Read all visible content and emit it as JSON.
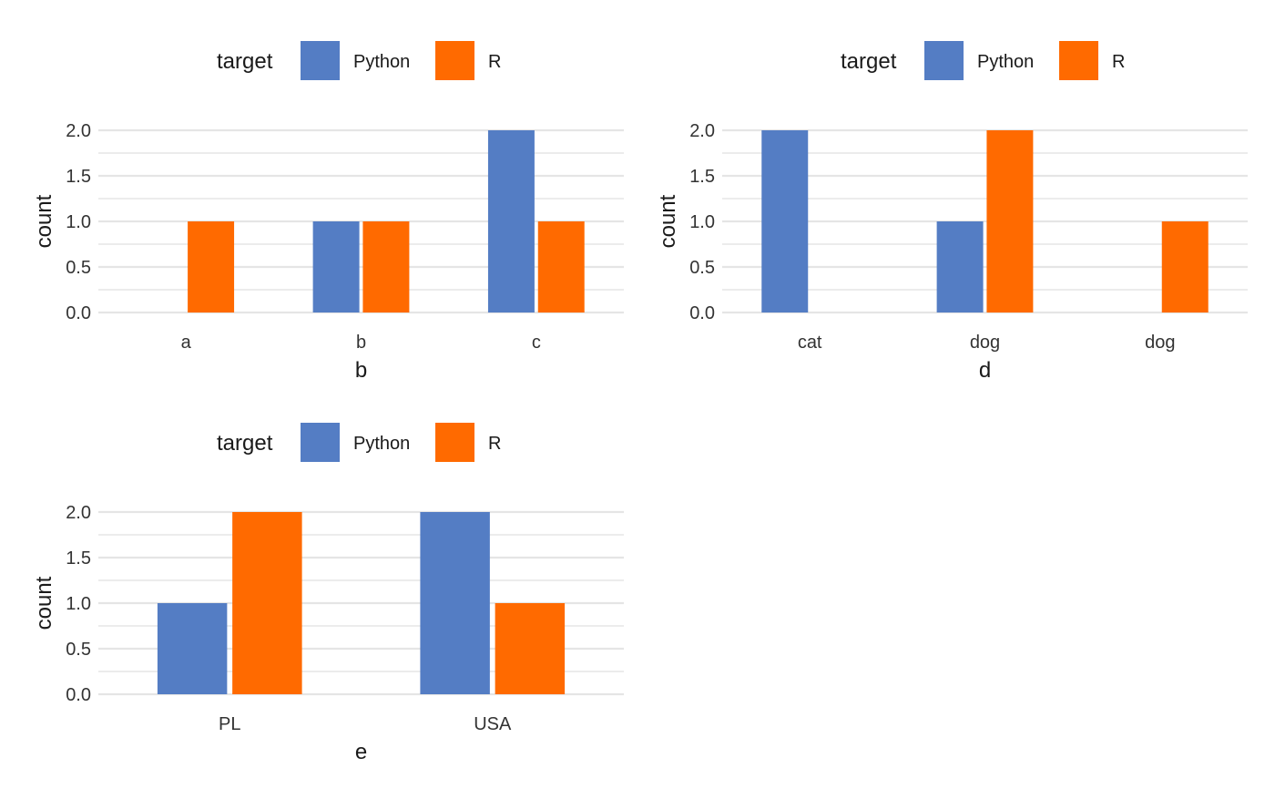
{
  "legend": {
    "title": "target",
    "python_label": "Python",
    "r_label": "R"
  },
  "colors": {
    "python": "#547DC4",
    "r": "#FF6A00",
    "grid": "#E5E5E5",
    "text": "#1A1A1A",
    "tick_text": "#333333"
  },
  "chart_data": [
    {
      "type": "bar",
      "title": "",
      "xlabel": "b",
      "ylabel": "count",
      "ylim": [
        0,
        2
      ],
      "yticks": [
        "0.0",
        "0.5",
        "1.0",
        "1.5",
        "2.0"
      ],
      "grid": true,
      "legend_position": "top",
      "categories": [
        "a",
        "b",
        "c"
      ],
      "series": [
        {
          "name": "Python",
          "values": [
            0,
            1,
            2
          ]
        },
        {
          "name": "R",
          "values": [
            1,
            1,
            1
          ]
        }
      ]
    },
    {
      "type": "bar",
      "title": "",
      "xlabel": "d",
      "ylabel": "count",
      "ylim": [
        0,
        2
      ],
      "yticks": [
        "0.0",
        "0.5",
        "1.0",
        "1.5",
        "2.0"
      ],
      "grid": true,
      "legend_position": "top",
      "categories": [
        "cat",
        "dog",
        "dog"
      ],
      "series": [
        {
          "name": "Python",
          "values": [
            2,
            1,
            0
          ]
        },
        {
          "name": "R",
          "values": [
            0,
            2,
            1
          ]
        }
      ]
    },
    {
      "type": "bar",
      "title": "",
      "xlabel": "e",
      "ylabel": "count",
      "ylim": [
        0,
        2
      ],
      "yticks": [
        "0.0",
        "0.5",
        "1.0",
        "1.5",
        "2.0"
      ],
      "grid": true,
      "legend_position": "top",
      "categories": [
        "PL",
        "USA"
      ],
      "series": [
        {
          "name": "Python",
          "values": [
            1,
            2
          ]
        },
        {
          "name": "R",
          "values": [
            2,
            1
          ]
        }
      ]
    }
  ]
}
